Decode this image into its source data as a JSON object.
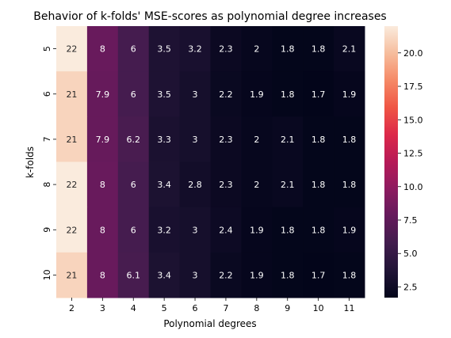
{
  "chart_data": {
    "type": "heatmap",
    "title": "Behavior of k-folds' MSE-scores as polynomial degree increases",
    "xlabel": "Polynomial degrees",
    "ylabel": "k-folds",
    "x_categories": [
      "2",
      "3",
      "4",
      "5",
      "6",
      "7",
      "8",
      "9",
      "10",
      "11"
    ],
    "y_categories": [
      "5",
      "6",
      "7",
      "8",
      "9",
      "10"
    ],
    "values": [
      [
        22,
        8,
        6,
        3.5,
        3.2,
        2.3,
        2,
        1.8,
        1.8,
        2.1
      ],
      [
        21,
        7.9,
        6,
        3.5,
        3,
        2.2,
        1.9,
        1.8,
        1.7,
        1.9
      ],
      [
        21,
        7.9,
        6.2,
        3.3,
        3,
        2.3,
        2,
        2.1,
        1.8,
        1.8
      ],
      [
        22,
        8,
        6,
        3.4,
        2.8,
        2.3,
        2,
        2.1,
        1.8,
        1.8
      ],
      [
        22,
        8,
        6,
        3.2,
        3,
        2.4,
        1.9,
        1.8,
        1.8,
        1.9
      ],
      [
        21,
        8,
        6.1,
        3.4,
        3,
        2.2,
        1.9,
        1.8,
        1.7,
        1.8
      ]
    ],
    "colorbar": {
      "colormap": "rocket",
      "range": [
        1.7,
        22
      ],
      "ticks": [
        2.5,
        5.0,
        7.5,
        10.0,
        12.5,
        15.0,
        17.5,
        20.0
      ],
      "tick_labels": [
        "2.5",
        "5.0",
        "7.5",
        "10.0",
        "12.5",
        "15.0",
        "17.5",
        "20.0"
      ]
    }
  }
}
